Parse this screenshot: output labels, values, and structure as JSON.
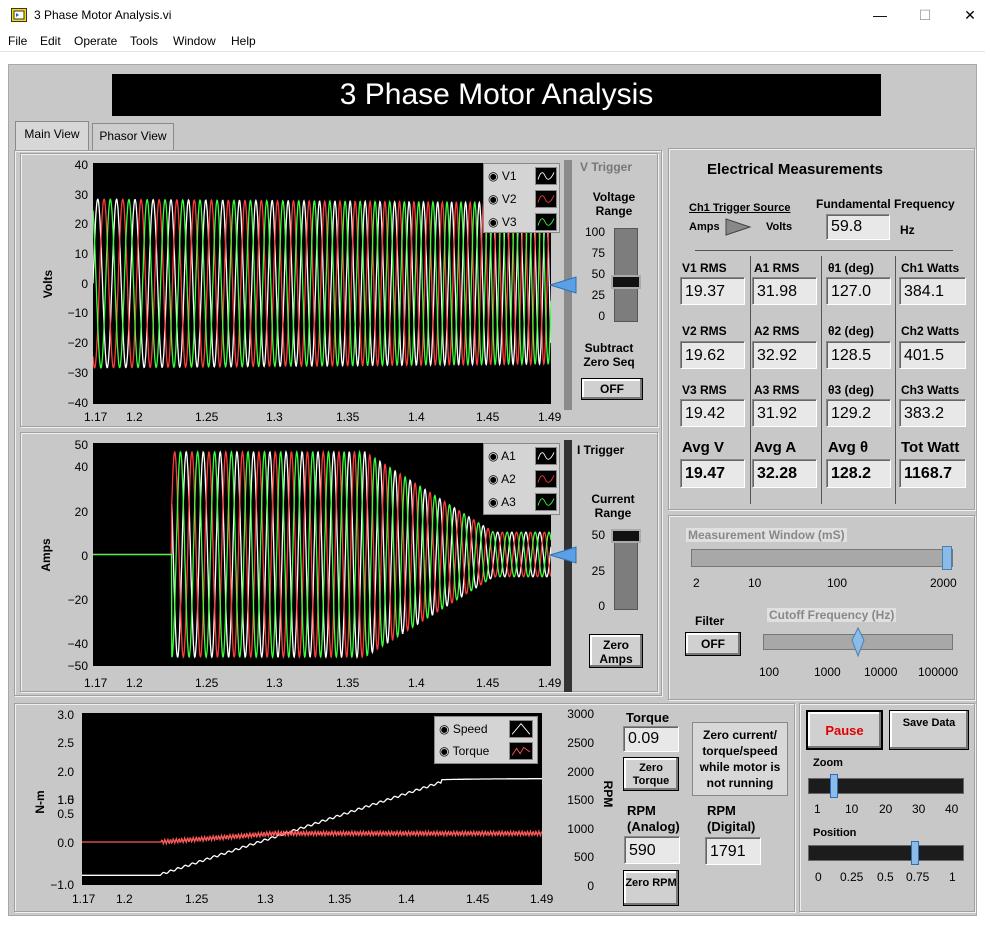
{
  "window": {
    "title": "3 Phase Motor Analysis.vi",
    "minimize": "—",
    "maximize": "☐",
    "close": "✕"
  },
  "menu": [
    "File",
    "Edit",
    "Operate",
    "Tools",
    "Window",
    "Help"
  ],
  "banner": "3 Phase Motor Analysis",
  "tabs": [
    "Main View",
    "Phasor View"
  ],
  "voltage_graph": {
    "ylabel": "Volts",
    "yticks": [
      "40",
      "30",
      "20",
      "10",
      "0",
      "−10",
      "−20",
      "−30",
      "−40"
    ],
    "xticks": [
      "1.17",
      "1.2",
      "1.25",
      "1.3",
      "1.35",
      "1.4",
      "1.45",
      "1.49"
    ],
    "legend": [
      "V1",
      "V2",
      "V3"
    ],
    "trigger_label": "V Trigger",
    "range_label": "Voltage Range",
    "range_ticks": [
      "100",
      "75",
      "50",
      "25",
      "0"
    ],
    "subtract_label": "Subtract Zero Seq",
    "subtract_button": "OFF"
  },
  "current_graph": {
    "ylabel": "Amps",
    "yticks": [
      "50",
      "40",
      "20",
      "0",
      "−20",
      "−40",
      "−50"
    ],
    "xticks": [
      "1.17",
      "1.2",
      "1.25",
      "1.3",
      "1.35",
      "1.4",
      "1.45",
      "1.49"
    ],
    "legend": [
      "A1",
      "A2",
      "A3"
    ],
    "trigger_label": "I Trigger",
    "range_label": "Current Range",
    "range_ticks": [
      "50",
      "25",
      "0"
    ],
    "zero_button": "Zero Amps"
  },
  "colors": {
    "phase1": "#ffffff",
    "phase2": "#ff3c3c",
    "phase3": "#3cff3c",
    "torque": "#ff5a5a",
    "trigger": "#5aa0e6",
    "pause_text": "#e00000"
  },
  "electrical": {
    "title": "Electrical Measurements",
    "trigger_source_label": "Ch1 Trigger Source",
    "trigger_left": "Amps",
    "trigger_right": "Volts",
    "freq_label": "Fundamental Frequency",
    "freq_value": "59.8",
    "freq_unit": "Hz",
    "columns": [
      {
        "rows": [
          {
            "label": "V1 RMS",
            "value": "19.37"
          },
          {
            "label": "V2 RMS",
            "value": "19.62"
          },
          {
            "label": "V3 RMS",
            "value": "19.42"
          }
        ],
        "avg_label": "Avg V",
        "avg_value": "19.47"
      },
      {
        "rows": [
          {
            "label": "A1 RMS",
            "value": "31.98"
          },
          {
            "label": "A2 RMS",
            "value": "32.92"
          },
          {
            "label": "A3 RMS",
            "value": "31.92"
          }
        ],
        "avg_label": "Avg A",
        "avg_value": "32.28"
      },
      {
        "rows": [
          {
            "label": "θ1 (deg)",
            "value": "127.0"
          },
          {
            "label": "θ2 (deg)",
            "value": "128.5"
          },
          {
            "label": "θ3 (deg)",
            "value": "129.2"
          }
        ],
        "avg_label": "Avg θ",
        "avg_value": "128.2"
      },
      {
        "rows": [
          {
            "label": "Ch1 Watts",
            "value": "384.1"
          },
          {
            "label": "Ch2 Watts",
            "value": "401.5"
          },
          {
            "label": "Ch3 Watts",
            "value": "383.2"
          }
        ],
        "avg_label": "Tot Watt",
        "avg_value": "1168.7"
      }
    ]
  },
  "measurement": {
    "window_label": "Measurement Window (mS)",
    "window_ticks": [
      "2",
      "10",
      "100",
      "2000"
    ],
    "window_value": 2000,
    "filter_label": "Filter",
    "filter_button": "OFF",
    "cutoff_label": "Cutoff Frequency (Hz)",
    "cutoff_ticks": [
      "100",
      "1000",
      "10000",
      "100000"
    ],
    "cutoff_value": 2800
  },
  "mech_graph": {
    "ylabel_left": "N-m",
    "ylabel_right": "RPM",
    "yticks_left": [
      "3.0",
      "2.5",
      "2.0",
      "1.5",
      "1.0",
      "0.5",
      "0.0",
      "−1.0"
    ],
    "yticks_right": [
      "3000",
      "2500",
      "2000",
      "1500",
      "1000",
      "500",
      "0"
    ],
    "xticks": [
      "1.17",
      "1.2",
      "1.25",
      "1.3",
      "1.35",
      "1.4",
      "1.45",
      "1.49"
    ],
    "legend": [
      "Speed",
      "Torque"
    ]
  },
  "mech": {
    "torque_label": "Torque",
    "torque_value": "0.09",
    "zero_torque": "Zero Torque",
    "note": "Zero current/ torque/speed while motor is not running",
    "rpm_analog_label": "RPM (Analog)",
    "rpm_analog_value": "590",
    "rpm_digital_label": "RPM (Digital)",
    "rpm_digital_value": "1791",
    "zero_rpm": "Zero RPM"
  },
  "controls": {
    "pause": "Pause",
    "save": "Save Data",
    "zoom_label": "Zoom",
    "zoom_ticks": [
      "1",
      "10",
      "20",
      "30",
      "40"
    ],
    "zoom_value": 5,
    "position_label": "Position",
    "position_ticks": [
      "0",
      "0.25",
      "0.5",
      "0.75",
      "1"
    ],
    "position_value": 0.7
  }
}
